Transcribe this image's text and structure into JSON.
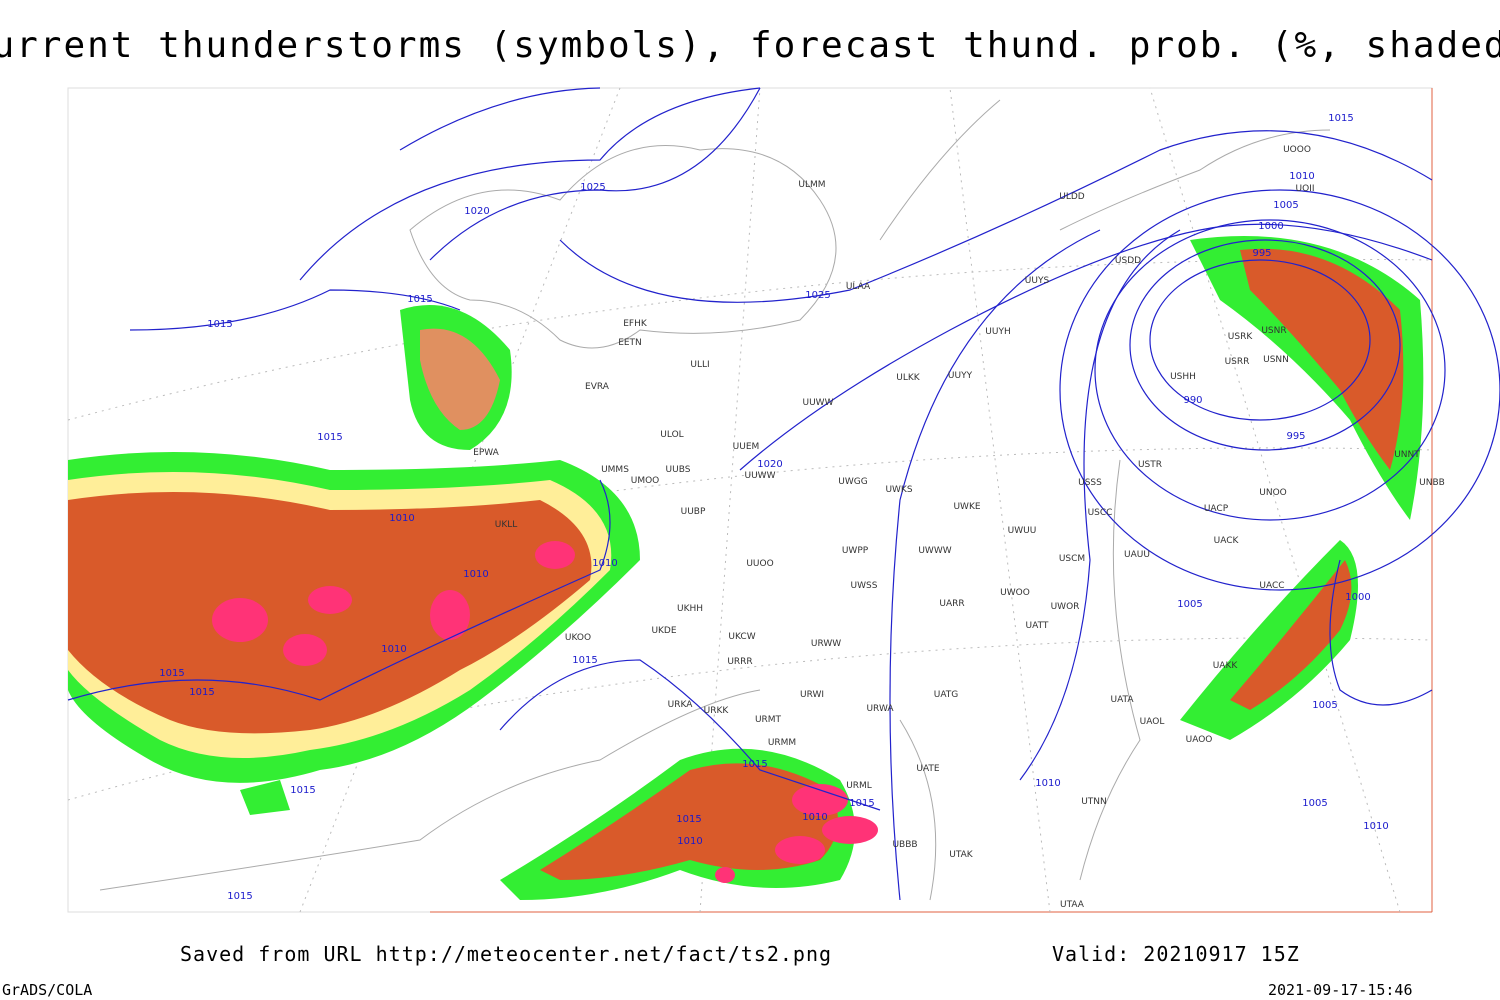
{
  "header": {
    "title": "Current thunderstorms (symbols), forecast thund. prob. (%, shaded)"
  },
  "footer": {
    "source": "Saved from URL http://meteocenter.net/fact/ts2.png",
    "valid": "Valid: 20210917 15Z",
    "software": "GrADS/COLA",
    "timestamp": "2021-09-17-15:46"
  },
  "isobar_labels": [
    1015,
    1010,
    1005,
    1000,
    995,
    990,
    995,
    1025,
    1020,
    1025,
    1015,
    1015,
    1015,
    1010,
    1020,
    1010,
    1010,
    1010,
    1015,
    1015,
    1015,
    1015,
    1015,
    1015,
    1010,
    1015,
    1010,
    1005,
    1000,
    1010,
    1005,
    1015,
    1010,
    1005
  ],
  "stations": [
    "ULMM",
    "ULDD",
    "USDD",
    "UUYS",
    "ULAA",
    "EFHK",
    "EETN",
    "UUYH",
    "ULLI",
    "USHH",
    "ULKK",
    "UUYY",
    "EVRA",
    "UUWW",
    "EPWA",
    "ULOL",
    "UUEM",
    "UUBS",
    "UMMS",
    "UMOO",
    "UUWW",
    "UWGG",
    "UWKS",
    "USSS",
    "USTR",
    "UWKE",
    "UKLL",
    "UUBP",
    "USCC",
    "UWPP",
    "UUOO",
    "UWSS",
    "UWWW",
    "UWUU",
    "USCM",
    "UAUU",
    "UWOO",
    "UARR",
    "UWOR",
    "UATT",
    "UKHH",
    "UKDE",
    "UKOO",
    "UKCW",
    "URWW",
    "URRR",
    "UATG",
    "UATA",
    "UAOL",
    "URWI",
    "URWA",
    "URKA",
    "URKK",
    "URMT",
    "URMM",
    "UATE",
    "URML",
    "UTNN",
    "UBBB",
    "UTAK",
    "UTAA",
    "USRR",
    "USNN",
    "USRK",
    "USNR",
    "UACC",
    "UAKK",
    "UAOO",
    "UNBB",
    "UNNT",
    "UNOO",
    "UACP",
    "UACK",
    "UOOO",
    "UOII"
  ]
}
